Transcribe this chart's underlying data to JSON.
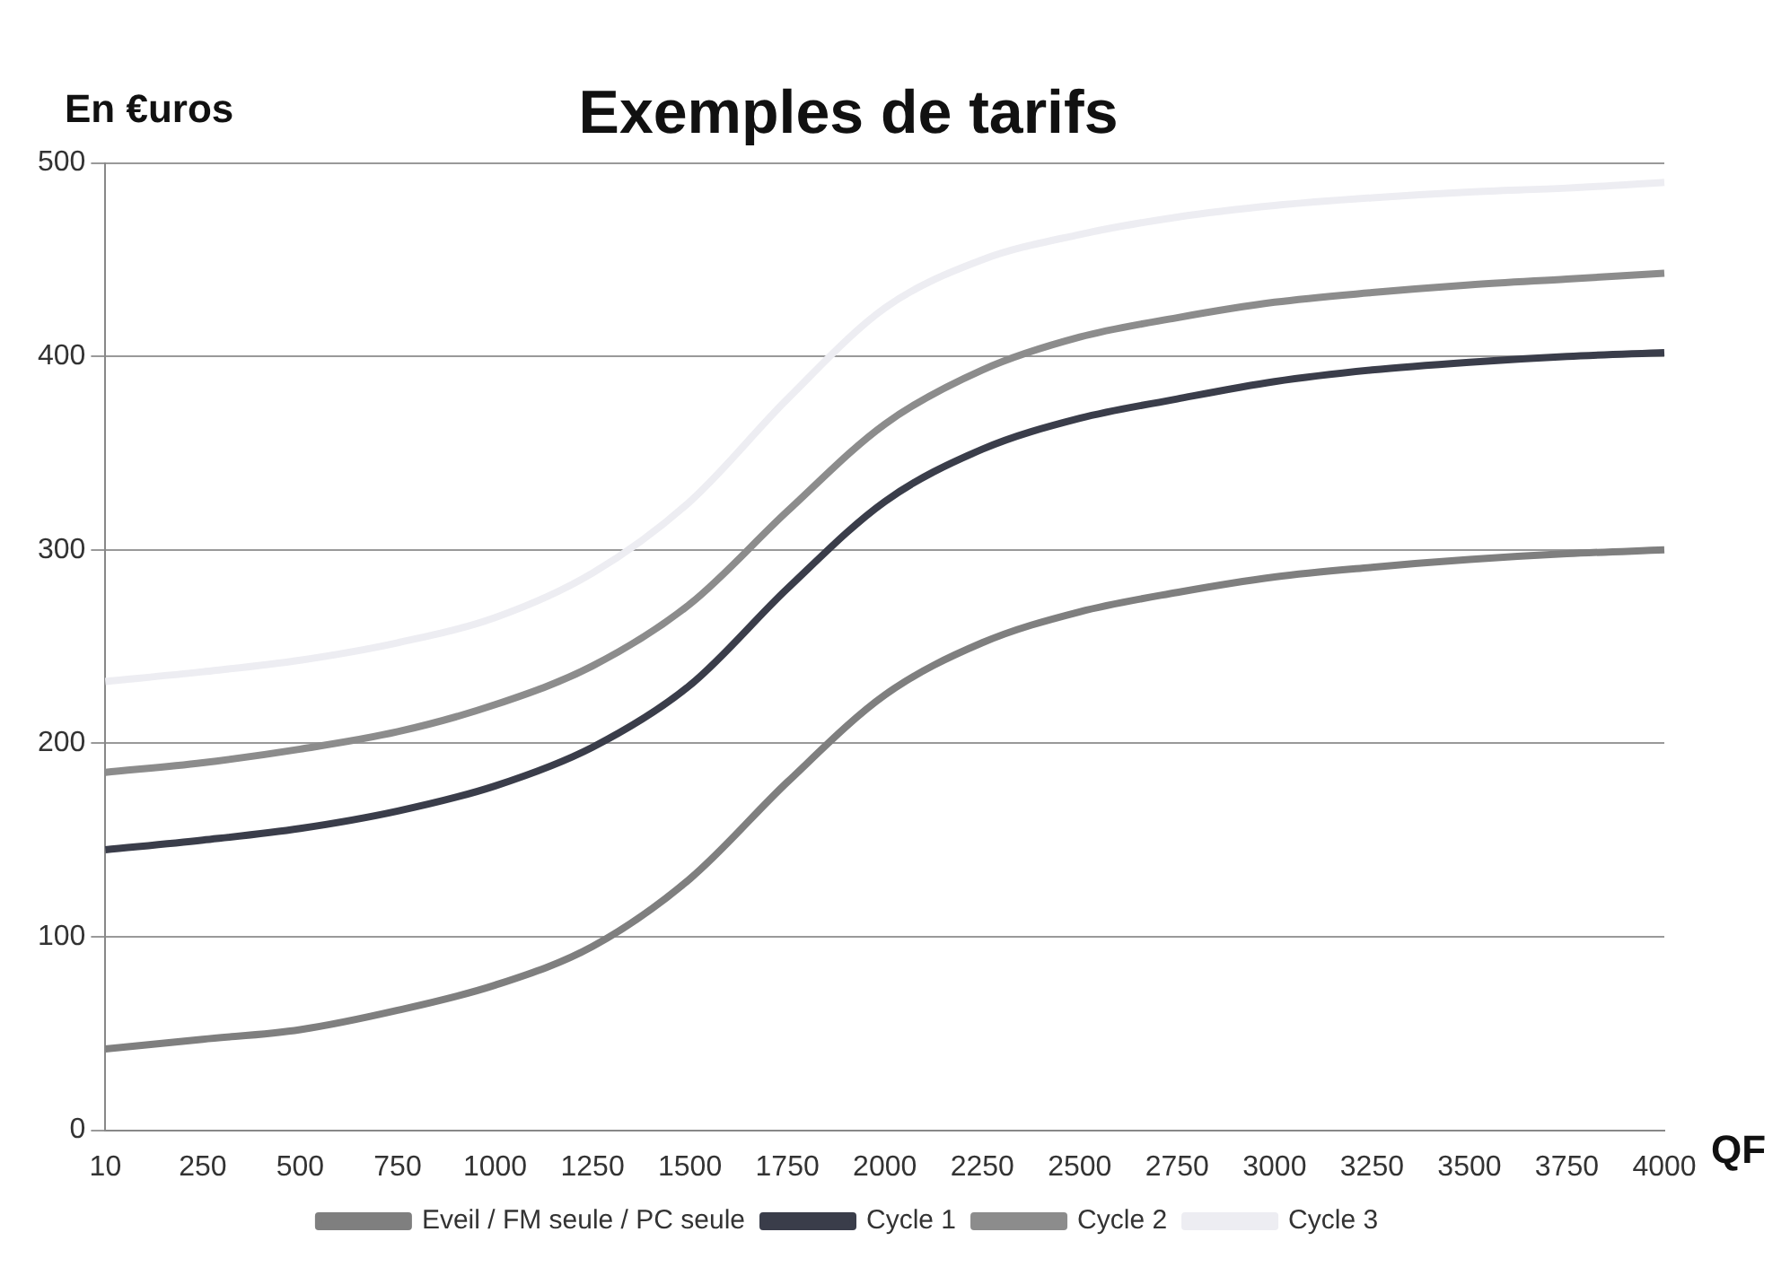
{
  "chart_data": {
    "type": "line",
    "title": "Exemples de tarifs",
    "ylabel": "En €uros",
    "xlabel": "QF",
    "categories": [
      "10",
      "250",
      "500",
      "750",
      "1000",
      "1250",
      "1500",
      "1750",
      "2000",
      "2250",
      "2500",
      "2750",
      "3000",
      "3250",
      "3500",
      "3750",
      "4000"
    ],
    "series": [
      {
        "name": "Eveil / FM seule / PC seule",
        "color": "#7f7f7f",
        "values": [
          42,
          47,
          52,
          62,
          75,
          95,
          130,
          180,
          225,
          252,
          268,
          278,
          286,
          291,
          295,
          298,
          300
        ]
      },
      {
        "name": "Cycle 1",
        "color": "#3a3d4a",
        "values": [
          145,
          150,
          156,
          165,
          178,
          198,
          230,
          280,
          325,
          352,
          368,
          378,
          387,
          393,
          397,
          400,
          402
        ]
      },
      {
        "name": "Cycle 2",
        "color": "#8c8c8c",
        "values": [
          185,
          190,
          197,
          206,
          220,
          240,
          272,
          320,
          365,
          393,
          410,
          420,
          428,
          433,
          437,
          440,
          443
        ]
      },
      {
        "name": "Cycle 3",
        "color": "#ededf2",
        "values": [
          232,
          237,
          243,
          252,
          265,
          288,
          325,
          378,
          425,
          450,
          463,
          472,
          478,
          482,
          485,
          487,
          490
        ]
      }
    ],
    "ylim": [
      0,
      500
    ],
    "yticks": [
      0,
      100,
      200,
      300,
      400,
      500
    ],
    "grid": "y",
    "legend": "bottom",
    "marker": "none",
    "line_style": "solid"
  }
}
